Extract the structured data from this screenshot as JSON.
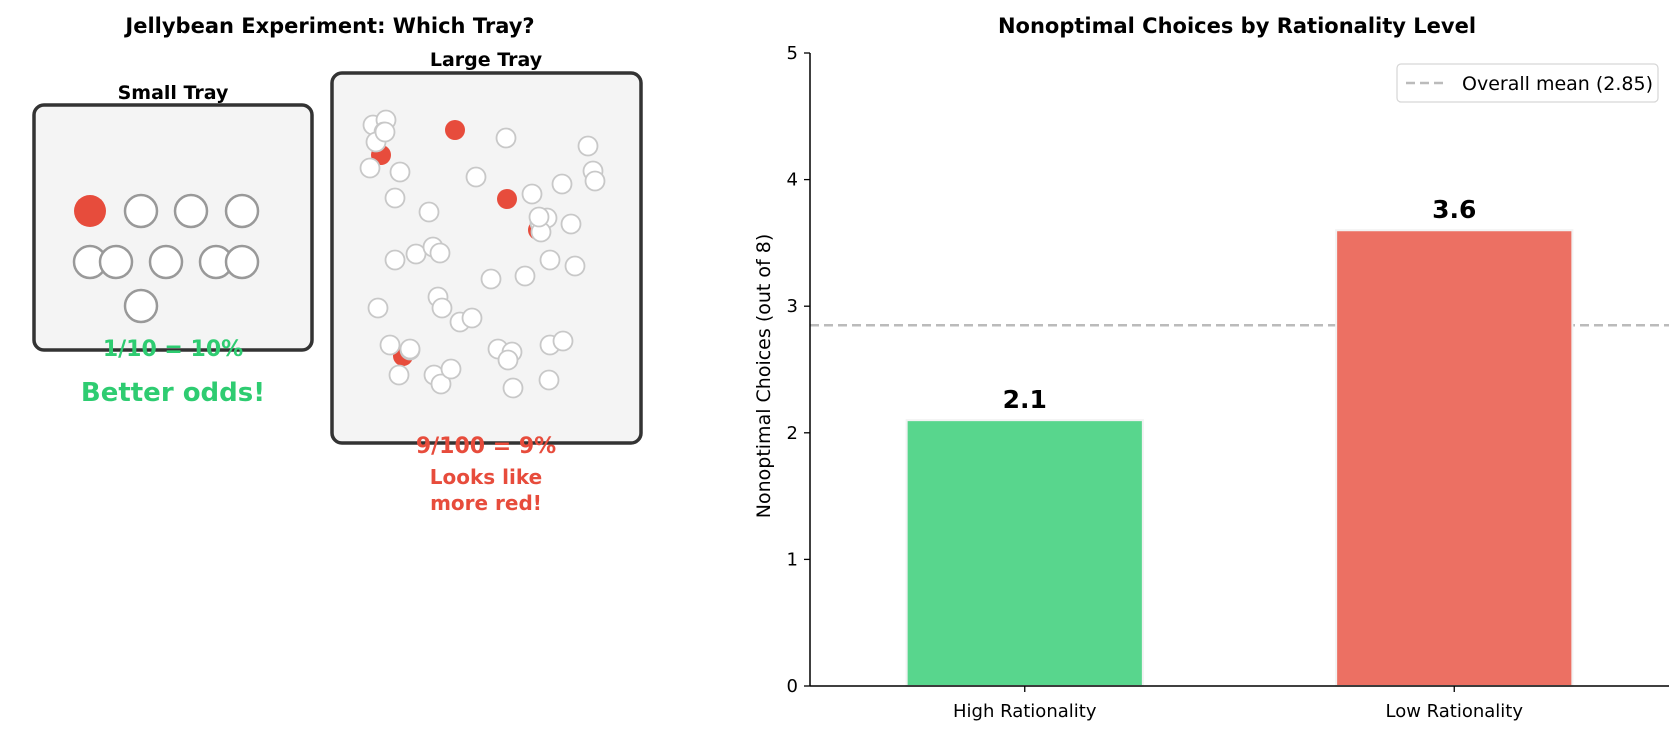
{
  "left_panel": {
    "title": "Jellybean Experiment: Which Tray?",
    "small_tray": {
      "label": "Small Tray",
      "red_count": 1,
      "total": 10,
      "ratio_text": "1/10 = 10%",
      "note": "Better odds!"
    },
    "large_tray": {
      "label": "Large Tray",
      "red_count": 9,
      "total": 100,
      "ratio_text": "9/100 = 9%",
      "note_line1": "Looks like",
      "note_line2": "more red!"
    }
  },
  "chart_data": {
    "type": "bar",
    "title": "Nonoptimal Choices by Rationality Level",
    "xlabel": "",
    "ylabel": "Nonoptimal Choices (out of 8)",
    "categories": [
      "High Rationality",
      "Low Rationality"
    ],
    "values": [
      2.1,
      3.6
    ],
    "data_labels": [
      "2.1",
      "3.6"
    ],
    "ylim": [
      0,
      5
    ],
    "yticks": [
      0,
      1,
      2,
      3,
      4,
      5
    ],
    "reference_line": {
      "value": 2.85,
      "label": "Overall mean (2.85)",
      "style": "dashed"
    },
    "legend_position": "top-right",
    "grid": false
  },
  "colors": {
    "green": "#2ecc71",
    "bar_green": "#58d68d",
    "red": "#e74c3c",
    "bar_red": "#ec7063",
    "tray_fill": "#f4f4f4",
    "tray_border": "#333333",
    "bean_outline_small": "#999999",
    "bean_outline_large": "#c8c8c8",
    "mean_line": "#bbbbbb"
  }
}
